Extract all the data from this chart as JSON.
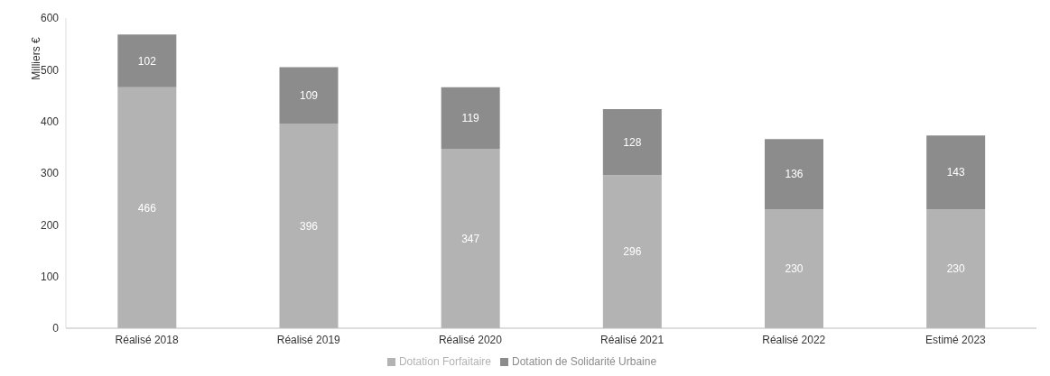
{
  "chart_data": {
    "type": "bar",
    "ylabel": "Milliers €",
    "categories": [
      "Réalisé 2018",
      "Réalisé 2019",
      "Réalisé 2020",
      "Réalisé 2021",
      "Réalisé 2022",
      "Estimé 2023"
    ],
    "series": [
      {
        "name": "Dotation Forfaitaire",
        "color": "#b3b3b3",
        "values": [
          466,
          396,
          347,
          296,
          230,
          230
        ]
      },
      {
        "name": "Dotation de Solidarité Urbaine",
        "color": "#8c8c8c",
        "values": [
          102,
          109,
          119,
          128,
          136,
          143
        ]
      }
    ],
    "stacked": true,
    "data_labels": true,
    "ylim": [
      0,
      600
    ],
    "yticks": [
      0,
      100,
      200,
      300,
      400,
      500,
      600
    ],
    "grid": false,
    "legend": "bottom"
  }
}
